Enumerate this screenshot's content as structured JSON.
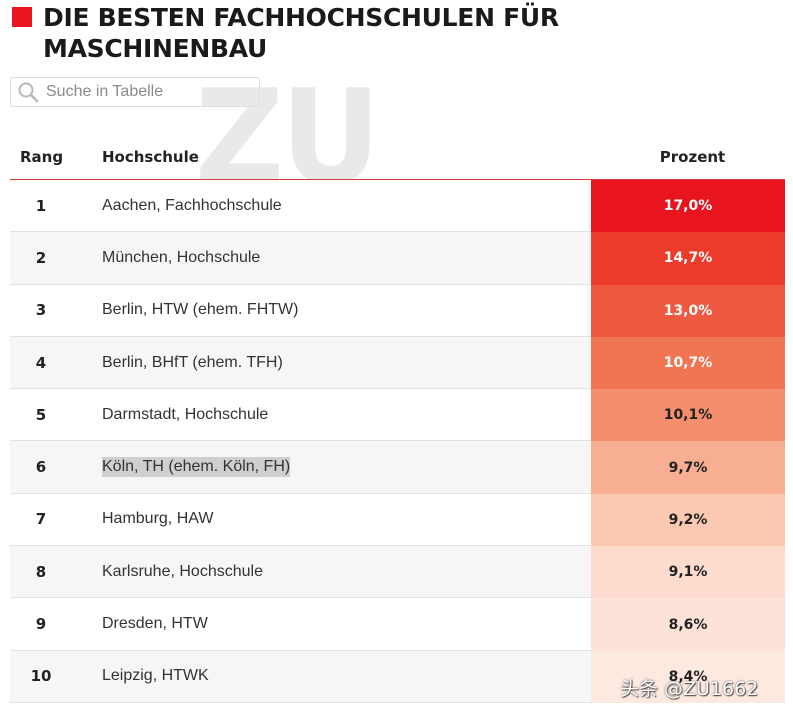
{
  "title": "DIE BESTEN FACHHOCHSCHULEN FÜR MASCHINENBAU",
  "accent_color": "#e8141e",
  "watermark_text": "ZU",
  "search": {
    "placeholder": "Suche in Tabelle"
  },
  "table": {
    "headers": {
      "rang": "Rang",
      "hochschule": "Hochschule",
      "prozent": "Prozent"
    },
    "rows": [
      {
        "rang": "1",
        "hochschule": "Aachen, Fachhochschule",
        "prozent": "17,0%",
        "bg": "#e8141e",
        "fg": "#ffffff"
      },
      {
        "rang": "2",
        "hochschule": "München, Hochschule",
        "prozent": "14,7%",
        "bg": "#ec3b2a",
        "fg": "#ffffff"
      },
      {
        "rang": "3",
        "hochschule": "Berlin, HTW (ehem. FHTW)",
        "prozent": "13,0%",
        "bg": "#ee5a3f",
        "fg": "#ffffff"
      },
      {
        "rang": "4",
        "hochschule": "Berlin, BHfT (ehem. TFH)",
        "prozent": "10,7%",
        "bg": "#f07553",
        "fg": "#ffffff"
      },
      {
        "rang": "5",
        "hochschule": "Darmstadt, Hochschule",
        "prozent": "10,1%",
        "bg": "#f48e6c",
        "fg": "#222222"
      },
      {
        "rang": "6",
        "hochschule": "Köln, TH (ehem. Köln, FH)",
        "prozent": "9,7%",
        "bg": "#f8ae92",
        "fg": "#222222",
        "highlighted": true
      },
      {
        "rang": "7",
        "hochschule": "Hamburg, HAW",
        "prozent": "9,2%",
        "bg": "#fbc9b2",
        "fg": "#222222"
      },
      {
        "rang": "8",
        "hochschule": "Karlsruhe, Hochschule",
        "prozent": "9,1%",
        "bg": "#fddccd",
        "fg": "#222222"
      },
      {
        "rang": "9",
        "hochschule": "Dresden, HTW",
        "prozent": "8,6%",
        "bg": "#fde3d7",
        "fg": "#222222"
      },
      {
        "rang": "10",
        "hochschule": "Leipzig, HTWK",
        "prozent": "8,4%",
        "bg": "#fde9e0",
        "fg": "#222222"
      }
    ]
  },
  "footer_watermark": "头条 @ZU1662"
}
